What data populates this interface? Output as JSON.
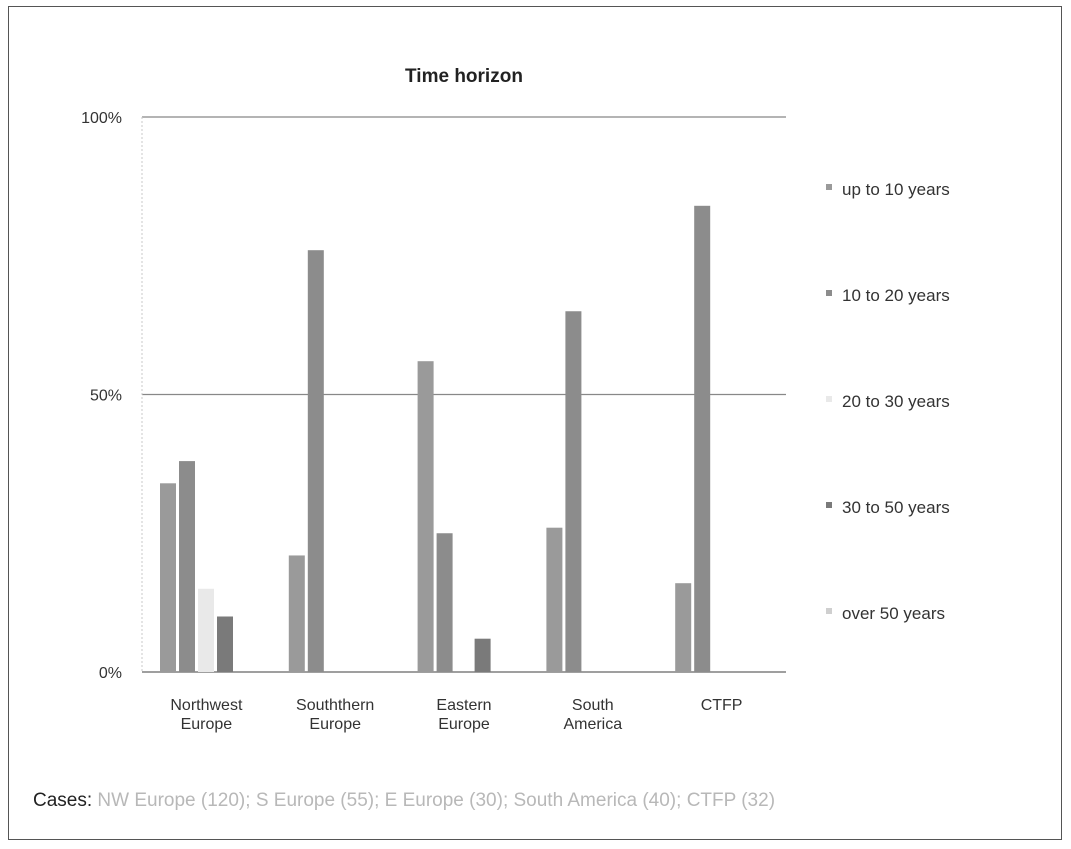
{
  "chart_data": {
    "type": "bar",
    "title": "Time horizon",
    "categories": [
      [
        "Northwest",
        "Europe"
      ],
      [
        "Souththern",
        "Europe"
      ],
      [
        "Eastern",
        "Europe"
      ],
      [
        "South",
        "America"
      ],
      [
        "CTFP"
      ]
    ],
    "series": [
      {
        "name": "up to 10 years",
        "color": "#9a9a9a",
        "values": [
          34,
          21,
          56,
          26,
          16
        ]
      },
      {
        "name": "10 to 20 years",
        "color": "#8c8c8c",
        "values": [
          38,
          76,
          25,
          65,
          84
        ]
      },
      {
        "name": "20 to 30 years",
        "color": "#e9e9e9",
        "values": [
          15,
          0,
          0,
          0,
          0
        ]
      },
      {
        "name": "30 to 50 years",
        "color": "#7a7a7a",
        "values": [
          10,
          0,
          6,
          0,
          0
        ]
      },
      {
        "name": "over 50 years",
        "color": "#cfcfcf",
        "values": [
          0,
          0,
          0,
          0,
          0
        ]
      }
    ],
    "yticks": [
      "0%",
      "50%",
      "100%"
    ],
    "ylim": [
      0,
      100
    ],
    "grid": true,
    "legend_position": "right"
  },
  "caption": {
    "label": "Cases:",
    "text": "NW Europe (120); S Europe (55); E Europe (30); South America (40); CTFP (32)"
  }
}
